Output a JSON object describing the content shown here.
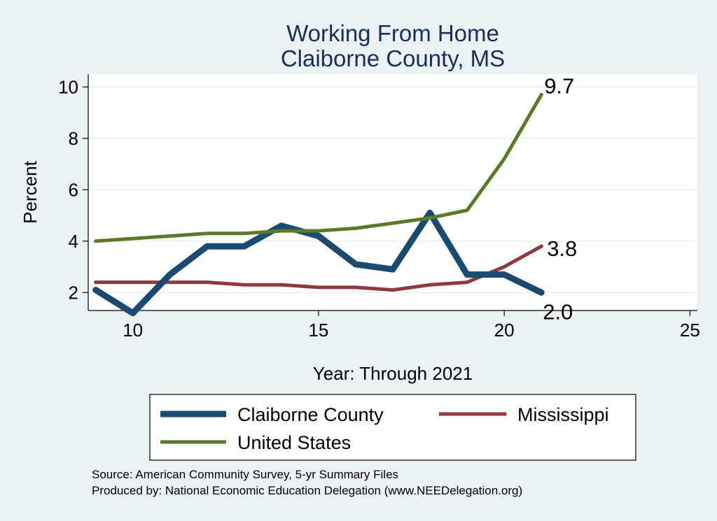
{
  "chart_data": {
    "type": "line",
    "title": [
      "Working From Home",
      "Claiborne County, MS"
    ],
    "xlabel": "Year: Through 2021",
    "ylabel": "Percent",
    "xlim": [
      8.8,
      25.2
    ],
    "ylim": [
      1.3,
      10.5
    ],
    "xticks": [
      10,
      15,
      20,
      25
    ],
    "yticks": [
      2,
      4,
      6,
      8,
      10
    ],
    "grid": true,
    "legend_position": "bottom",
    "series": [
      {
        "name": "Claiborne County",
        "color": "#1b4a70",
        "x": [
          9,
          10,
          11,
          12,
          13,
          14,
          15,
          16,
          17,
          18,
          19,
          20,
          21
        ],
        "y": [
          2.1,
          1.2,
          2.7,
          3.8,
          3.8,
          4.6,
          4.2,
          3.1,
          2.9,
          5.1,
          2.7,
          2.7,
          2.0
        ],
        "end_label": "2.0"
      },
      {
        "name": "Mississippi",
        "color": "#8e3a3e",
        "x": [
          9,
          10,
          11,
          12,
          13,
          14,
          15,
          16,
          17,
          18,
          19,
          20,
          21
        ],
        "y": [
          2.4,
          2.4,
          2.4,
          2.4,
          2.3,
          2.3,
          2.2,
          2.2,
          2.1,
          2.3,
          2.4,
          3.0,
          3.8
        ],
        "end_label": "3.8"
      },
      {
        "name": "United States",
        "color": "#5a7a2a",
        "x": [
          9,
          10,
          11,
          12,
          13,
          14,
          15,
          16,
          17,
          18,
          19,
          20,
          21
        ],
        "y": [
          4.0,
          4.1,
          4.2,
          4.3,
          4.3,
          4.4,
          4.4,
          4.5,
          4.7,
          4.9,
          5.2,
          7.2,
          9.7
        ],
        "end_label": "9.7"
      }
    ]
  },
  "footer": {
    "source": "Source: American Community Survey, 5-yr Summary Files",
    "produced": "Produced by: National Economic Education Delegation (www.NEEDelegation.org)"
  }
}
